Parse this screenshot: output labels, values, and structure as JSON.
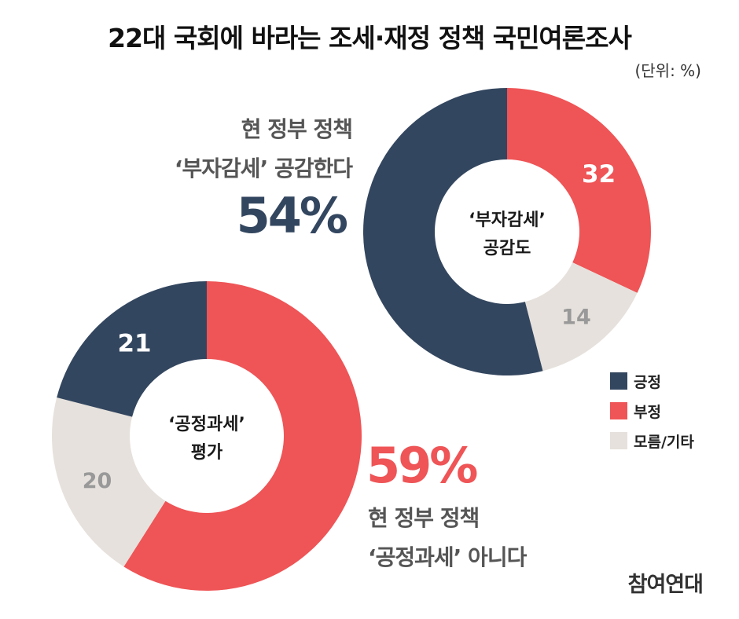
{
  "title": "22대 국회에 바라는 조세·재정 정책 국민여론조사",
  "unit": "(단위: %)",
  "colors": {
    "positive": "#33465f",
    "negative": "#ef5456",
    "unknown": "#e6e1dc",
    "label_dark": "#ffffff",
    "label_light": "#999999"
  },
  "annotation_top": {
    "line1": "현 정부 정책",
    "line2": "‘부자감세’ 공감한다",
    "value": "54%"
  },
  "annotation_bottom": {
    "value": "59%",
    "line1": "현 정부 정책",
    "line2": "‘공정과세’ 아니다"
  },
  "legend": [
    {
      "label": "긍정",
      "color": "#33465f"
    },
    {
      "label": "부정",
      "color": "#ef5456"
    },
    {
      "label": "모름/기타",
      "color": "#e6e1dc"
    }
  ],
  "source": "참여연대",
  "chart_data": [
    {
      "type": "pie",
      "center_label": [
        "‘부자감세’",
        "공감도"
      ],
      "categories": [
        "긍정",
        "부정",
        "모름/기타"
      ],
      "values": [
        54,
        32,
        14
      ],
      "data_labels": [
        "",
        "32",
        "14"
      ]
    },
    {
      "type": "pie",
      "center_label": [
        "‘공정과세’",
        "평가"
      ],
      "categories": [
        "긍정",
        "부정",
        "모름/기타"
      ],
      "values": [
        21,
        59,
        20
      ],
      "data_labels": [
        "21",
        "",
        "20"
      ]
    }
  ]
}
